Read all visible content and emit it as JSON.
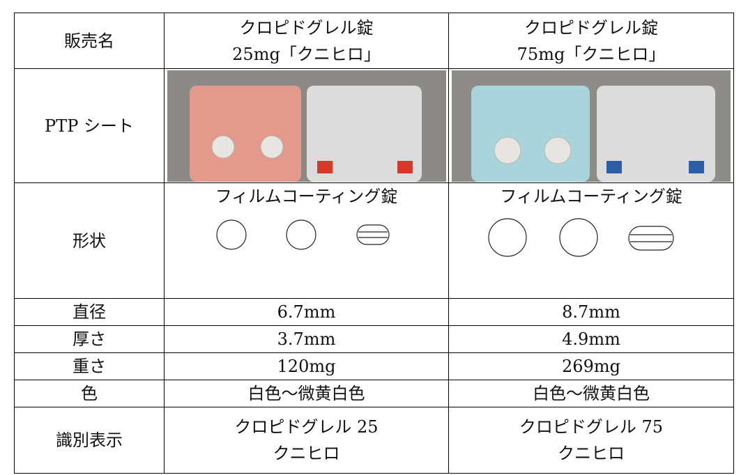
{
  "table": {
    "rows": [
      {
        "label": "販売名",
        "cells": [
          [
            "クロピドグレル錠",
            "25mg「クニヒロ」"
          ],
          [
            "クロピドグレル錠",
            "75mg「クニヒロ」"
          ]
        ]
      },
      {
        "label": "PTP シート"
      },
      {
        "label": "形状",
        "cells": [
          [
            "フィルムコーティング錠"
          ],
          [
            "フィルムコーティング錠"
          ]
        ]
      },
      {
        "label": "直径",
        "cells": [
          [
            "6.7mm"
          ],
          [
            "8.7mm"
          ]
        ]
      },
      {
        "label": "厚さ",
        "cells": [
          [
            "3.7mm"
          ],
          [
            "4.9mm"
          ]
        ]
      },
      {
        "label": "重さ",
        "cells": [
          [
            "120mg"
          ],
          [
            "269mg"
          ]
        ]
      },
      {
        "label": "色",
        "cells": [
          [
            "白色～微黄白色"
          ],
          [
            "白色～微黄白色"
          ]
        ]
      },
      {
        "label": "識別表示",
        "cells": [
          [
            "クロピドグレル 25",
            "クニヒロ"
          ],
          [
            "クロピドグレル 75",
            "クニヒロ"
          ]
        ]
      }
    ]
  }
}
